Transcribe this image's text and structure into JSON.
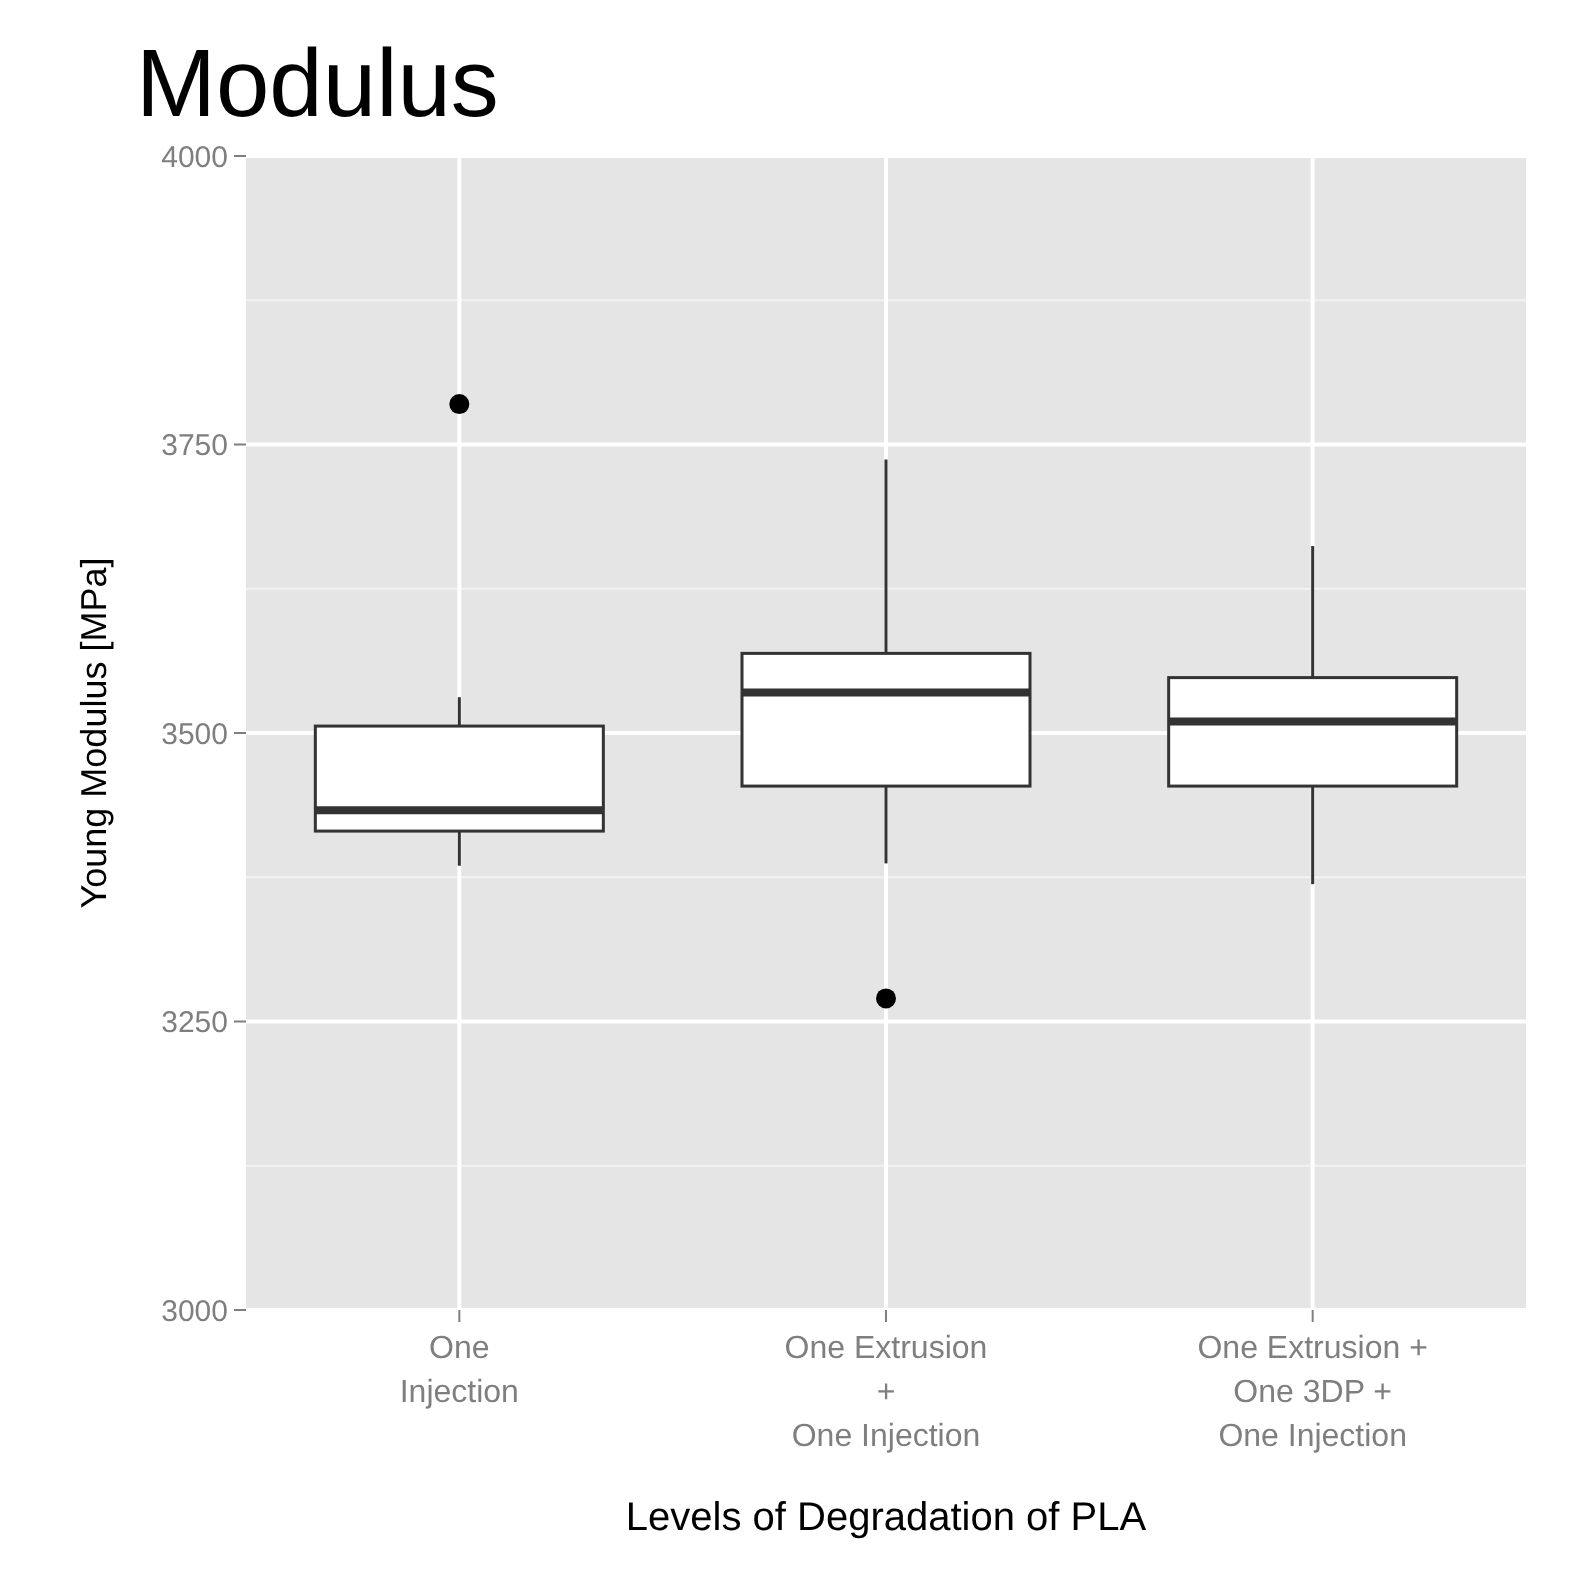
{
  "chart_data": {
    "type": "box",
    "title": "Modulus",
    "xlabel": "Levels of Degradation of PLA",
    "ylabel": "Young Modulus [MPa]",
    "categories": [
      "One\nInjection",
      "One Extrusion\n+\nOne Injection",
      "One Extrusion +\nOne 3DP +\nOne Injection"
    ],
    "boxes": [
      {
        "low": 3385,
        "q1": 3415,
        "median": 3433,
        "q3": 3506,
        "high": 3531,
        "outliers": [
          3785
        ]
      },
      {
        "low": 3387,
        "q1": 3454,
        "median": 3535,
        "q3": 3569,
        "high": 3737,
        "outliers": [
          3270
        ]
      },
      {
        "low": 3369,
        "q1": 3454,
        "median": 3510,
        "q3": 3548,
        "high": 3662
      }
    ],
    "ylim": [
      3000,
      4000
    ],
    "yticks": [
      3000,
      3250,
      3500,
      3750,
      4000
    ],
    "grid": true
  }
}
